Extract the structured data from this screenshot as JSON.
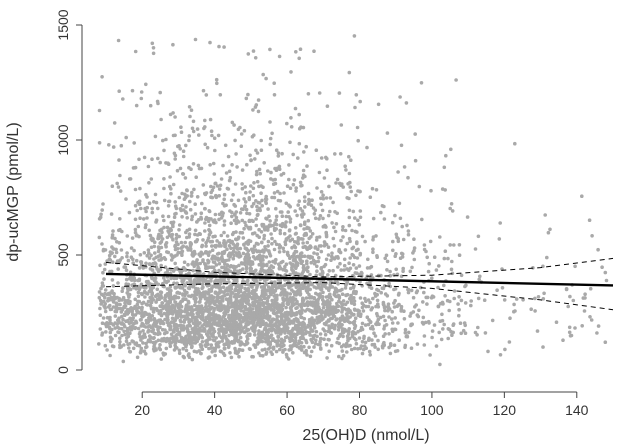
{
  "chart_data": {
    "type": "scatter",
    "title": "",
    "xlabel": "25(OH)D (nmol/L)",
    "ylabel": "dp-ucMGP (pmol/L)",
    "xlim": [
      5,
      150
    ],
    "ylim": [
      -20,
      1500
    ],
    "xticks": [
      "20",
      "40",
      "60",
      "80",
      "100",
      "120",
      "140"
    ],
    "yticks": [
      "0",
      "500",
      "1000",
      "1500"
    ],
    "grid": false,
    "legend": "none",
    "colors": {
      "points": "#a9a9a9",
      "fit_line": "#000000",
      "ci_lines": "#000000",
      "axes": "#444444"
    },
    "scatter_summary": {
      "n_points_approx": 5000,
      "x_center": 45,
      "x_spread": 22,
      "y_center": 390,
      "y_spread": 230,
      "x_range": [
        8,
        150
      ],
      "y_range": [
        0,
        1460
      ]
    },
    "series": [
      {
        "role": "regression-fit",
        "x": [
          10,
          150
        ],
        "y": [
          418,
          368
        ]
      },
      {
        "role": "ci-upper",
        "x": [
          10,
          40,
          70,
          100,
          130,
          150
        ],
        "y": [
          468,
          425,
          405,
          412,
          445,
          485
        ]
      },
      {
        "role": "ci-lower",
        "x": [
          10,
          40,
          70,
          100,
          130,
          150
        ],
        "y": [
          362,
          375,
          380,
          355,
          305,
          262
        ]
      }
    ]
  }
}
